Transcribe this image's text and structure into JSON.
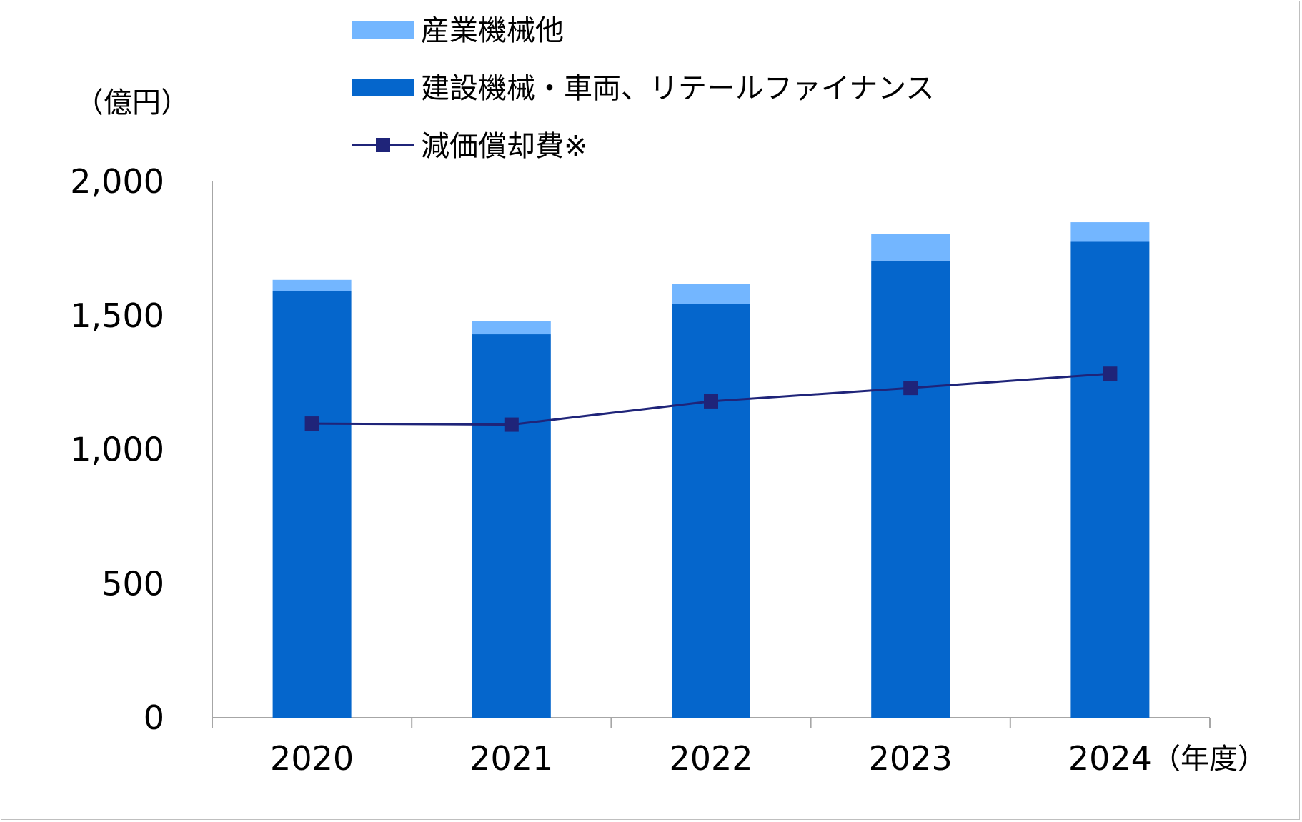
{
  "chart_data": {
    "type": "bar",
    "stacked": true,
    "unit_label": "（億円）",
    "x_unit_label": "（年度）",
    "categories": [
      "2020",
      "2021",
      "2022",
      "2023",
      "2024"
    ],
    "ylim": [
      0,
      2000
    ],
    "yticks": [
      0,
      500,
      1000,
      1500,
      2000
    ],
    "ytick_labels": [
      "0",
      "500",
      "1,000",
      "1,500",
      "2,000"
    ],
    "grid": false,
    "legend_position": "top",
    "series": [
      {
        "name": "建設機械・車両、リテールファイナンス",
        "kind": "bar",
        "color": "#0566CC",
        "values": [
          1590,
          1430,
          1542,
          1705,
          1775
        ]
      },
      {
        "name": "産業機械他",
        "kind": "bar",
        "color": "#73B6FF",
        "values": [
          43,
          48,
          75,
          100,
          73
        ]
      },
      {
        "name": "減価償却費※",
        "kind": "line",
        "color": "#1F2479",
        "marker": "square",
        "values": [
          1097,
          1093,
          1180,
          1230,
          1283
        ]
      }
    ]
  }
}
